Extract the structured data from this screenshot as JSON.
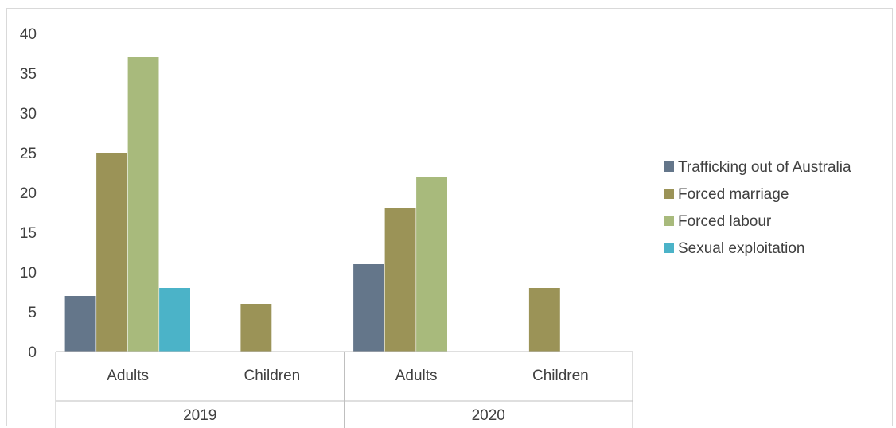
{
  "chart_data": {
    "type": "bar",
    "groups": [
      {
        "year": "2019",
        "categories": [
          "Adults",
          "Children"
        ]
      },
      {
        "year": "2020",
        "categories": [
          "Adults",
          "Children"
        ]
      }
    ],
    "x": [
      "2019 Adults",
      "2019 Children",
      "2020 Adults",
      "2020 Children"
    ],
    "series": [
      {
        "name": "Trafficking out of Australia",
        "color": "#64768a",
        "values": [
          7,
          0,
          11,
          0
        ]
      },
      {
        "name": "Forced marriage",
        "color": "#9b9357",
        "values": [
          25,
          6,
          18,
          8
        ]
      },
      {
        "name": "Forced labour",
        "color": "#a8ba7c",
        "values": [
          37,
          0,
          22,
          0
        ]
      },
      {
        "name": "Sexual exploitation",
        "color": "#4bb3c8",
        "values": [
          8,
          0,
          0,
          0
        ]
      }
    ],
    "y_ticks": [
      "0",
      "5",
      "10",
      "15",
      "20",
      "25",
      "30",
      "35",
      "40"
    ],
    "ylim": [
      0,
      40
    ],
    "grid": false,
    "legend_position": "right"
  }
}
